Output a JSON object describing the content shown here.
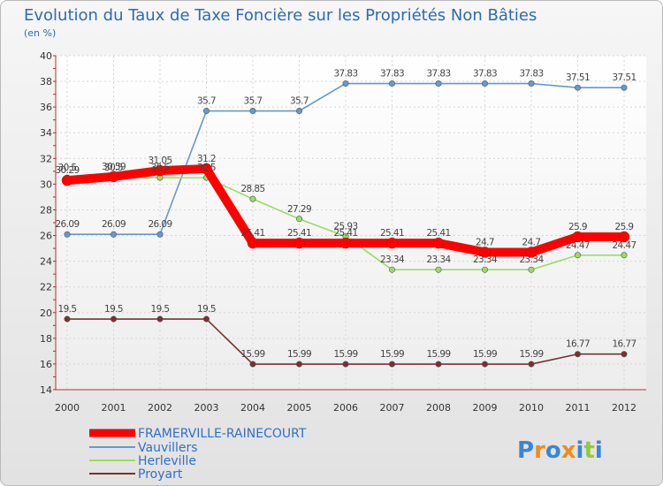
{
  "chart_data": {
    "type": "line",
    "title": "Evolution du Taux de Taxe Foncière sur les Propriétés Non Bâties",
    "subtitle": "(en %)",
    "xlabel": "",
    "ylabel": "",
    "x": [
      "2000",
      "2001",
      "2002",
      "2003",
      "2004",
      "2005",
      "2006",
      "2007",
      "2008",
      "2009",
      "2010",
      "2011",
      "2012"
    ],
    "ylim": [
      14,
      40
    ],
    "yticks": [
      "14",
      "16",
      "18",
      "20",
      "22",
      "24",
      "26",
      "28",
      "30",
      "32",
      "34",
      "36",
      "38",
      "40"
    ],
    "grid": true,
    "legend_position": "bottom-left",
    "series": [
      {
        "name": "FRAMERVILLE-RAINECOURT",
        "color": "#ff0000",
        "values": [
          30.29,
          30.59,
          31.05,
          31.2,
          25.41,
          25.41,
          25.41,
          25.41,
          25.41,
          24.7,
          24.7,
          25.9,
          25.9
        ],
        "labels": [
          "30.29",
          "30.59",
          "31.05",
          "31.2",
          "25.41",
          "25.41",
          "25.41",
          "25.41",
          "25.41",
          "24.7",
          "24.7",
          "25.9",
          "25.9"
        ]
      },
      {
        "name": "Vauvillers",
        "color": "#6699cc",
        "values": [
          26.09,
          26.09,
          26.09,
          35.7,
          35.7,
          35.7,
          37.83,
          37.83,
          37.83,
          37.83,
          37.83,
          37.51,
          37.51
        ],
        "labels": [
          "26.09",
          "26.09",
          "26.09",
          "35.7",
          "35.7",
          "35.7",
          "37.83",
          "37.83",
          "37.83",
          "37.83",
          "37.83",
          "37.51",
          "37.51"
        ]
      },
      {
        "name": "Herleville",
        "color": "#99dd66",
        "values": [
          30.5,
          30.5,
          30.5,
          30.5,
          28.85,
          27.29,
          25.93,
          23.34,
          23.34,
          23.34,
          23.34,
          24.47,
          24.47
        ],
        "labels": [
          "30.5",
          "30.5",
          "30.5",
          "30.5",
          "28.85",
          "27.29",
          "25.93",
          "23.34",
          "23.34",
          "23.34",
          "23.34",
          "24.47",
          "24.47"
        ]
      },
      {
        "name": "Proyart",
        "color": "#7a3030",
        "values": [
          19.5,
          19.5,
          19.5,
          19.5,
          15.99,
          15.99,
          15.99,
          15.99,
          15.99,
          15.99,
          15.99,
          16.77,
          16.77
        ],
        "labels": [
          "19.5",
          "19.5",
          "19.5",
          "19.5",
          "15.99",
          "15.99",
          "15.99",
          "15.99",
          "15.99",
          "15.99",
          "15.99",
          "16.77",
          "16.77"
        ]
      }
    ]
  },
  "logo": {
    "text": "Proxiti",
    "letters": [
      "P",
      "r",
      "o",
      "x",
      "i",
      "t",
      "i"
    ],
    "colors": [
      "#3a86d4",
      "#f08c1a",
      "#3a86d4",
      "#f08c1a",
      "#3a86d4",
      "#96c83c",
      "#3a86d4"
    ]
  }
}
